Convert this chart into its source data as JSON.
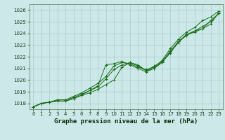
{
  "x": [
    0,
    1,
    2,
    3,
    4,
    5,
    6,
    7,
    8,
    9,
    10,
    11,
    12,
    13,
    14,
    15,
    16,
    17,
    18,
    19,
    20,
    21,
    22,
    23
  ],
  "line1": [
    1017.7,
    1018.0,
    1018.1,
    1018.2,
    1018.2,
    1018.4,
    1018.7,
    1018.9,
    1019.2,
    1019.6,
    1020.0,
    1021.1,
    1021.5,
    1021.3,
    1020.8,
    1021.2,
    1021.6,
    1022.3,
    1023.3,
    1023.9,
    1024.1,
    1024.4,
    1025.1,
    1025.7
  ],
  "line2": [
    1017.7,
    1018.0,
    1018.1,
    1018.3,
    1018.3,
    1018.6,
    1018.9,
    1019.3,
    1019.7,
    1020.3,
    1021.2,
    1021.5,
    1021.4,
    1021.1,
    1020.9,
    1021.1,
    1021.7,
    1022.7,
    1023.5,
    1024.1,
    1024.5,
    1025.1,
    1025.4,
    1025.9
  ],
  "line3": [
    1017.7,
    1018.0,
    1018.1,
    1018.2,
    1018.2,
    1018.4,
    1018.7,
    1019.1,
    1019.5,
    1021.3,
    1021.4,
    1021.6,
    1021.3,
    1021.0,
    1020.7,
    1021.0,
    1021.5,
    1022.4,
    1023.2,
    1023.9,
    1024.2,
    1024.4,
    1024.8,
    1025.8
  ],
  "line4": [
    1017.7,
    1018.0,
    1018.1,
    1018.3,
    1018.3,
    1018.5,
    1018.8,
    1019.1,
    1019.4,
    1020.1,
    1020.9,
    1021.3,
    1021.5,
    1021.2,
    1020.8,
    1021.0,
    1021.6,
    1022.5,
    1023.3,
    1023.8,
    1024.2,
    1024.6,
    1025.0,
    1025.7
  ],
  "line_color": "#1a6e1a",
  "bg_color": "#cce8e8",
  "grid_color": "#aacccc",
  "xlabel": "Graphe pression niveau de la mer (hPa)",
  "ylim": [
    1017.5,
    1026.5
  ],
  "yticks": [
    1018,
    1019,
    1020,
    1021,
    1022,
    1023,
    1024,
    1025,
    1026
  ],
  "xticks": [
    0,
    1,
    2,
    3,
    4,
    5,
    6,
    7,
    8,
    9,
    10,
    11,
    12,
    13,
    14,
    15,
    16,
    17,
    18,
    19,
    20,
    21,
    22,
    23
  ],
  "tick_fontsize": 5.0,
  "xlabel_fontsize": 6.5,
  "figwidth": 3.2,
  "figheight": 2.0,
  "dpi": 100
}
